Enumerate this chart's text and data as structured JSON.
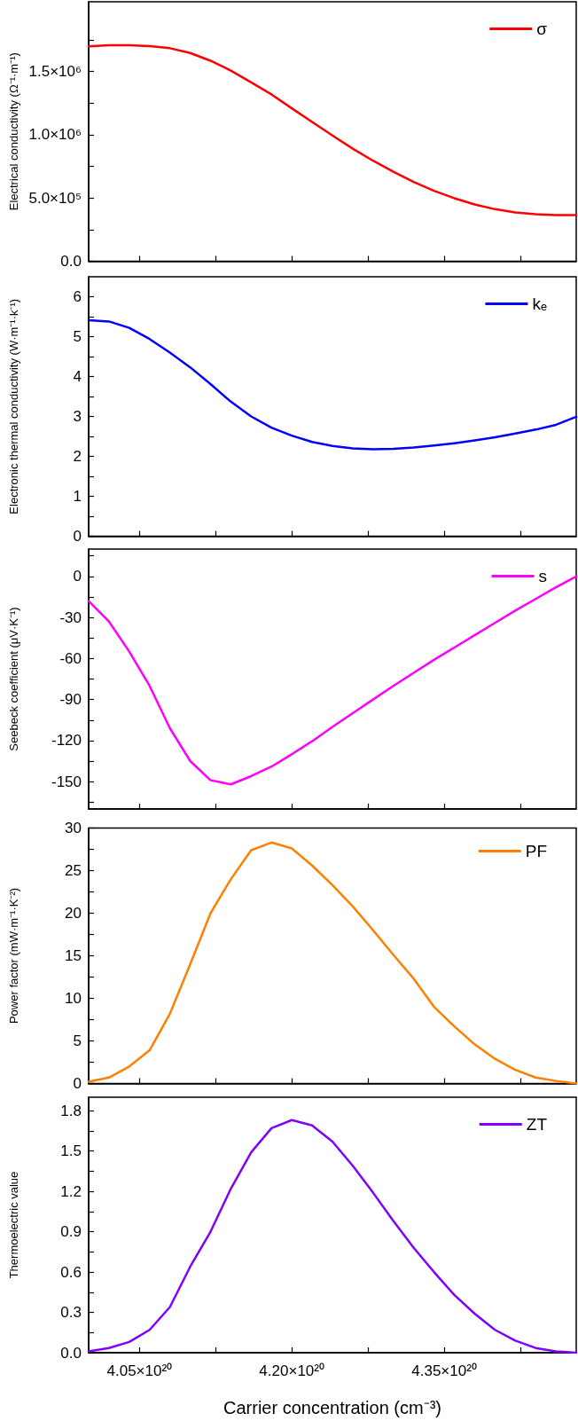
{
  "chart_data": [
    {
      "type": "line",
      "ylabel": "Electrical conductivity (Ω⁻¹·m⁻¹)",
      "legend": "top right",
      "marker": "none",
      "line_style": "solid",
      "grid": false,
      "tick_labels": "y",
      "xlim": [
        4e+20,
        4.48e+20
      ],
      "xticks": [
        {
          "value": 4.05e+20,
          "label": null
        },
        {
          "value": 4.125e+20,
          "label": null
        },
        {
          "value": 4.2e+20,
          "label": null
        },
        {
          "value": 4.275e+20,
          "label": null
        },
        {
          "value": 4.35e+20,
          "label": null
        },
        {
          "value": 4.425e+20,
          "label": null
        }
      ],
      "ylim": [
        0,
        2050000.0
      ],
      "yticks": [
        {
          "value": 0,
          "label": "0.0"
        },
        {
          "value": 250000,
          "label": null
        },
        {
          "value": 500000,
          "label": "5.0×10⁵"
        },
        {
          "value": 750000,
          "label": null
        },
        {
          "value": 1000000,
          "label": "1.0×10⁶"
        },
        {
          "value": 1250000,
          "label": null
        },
        {
          "value": 1500000,
          "label": "1.5×10⁶"
        },
        {
          "value": 1750000,
          "label": null
        }
      ],
      "x": [
        4e+20,
        4.02e+20,
        4.04e+20,
        4.06e+20,
        4.08e+20,
        4.1e+20,
        4.12e+20,
        4.14e+20,
        4.16e+20,
        4.18e+20,
        4.2e+20,
        4.22e+20,
        4.24e+20,
        4.26e+20,
        4.28e+20,
        4.3e+20,
        4.32e+20,
        4.34e+20,
        4.36e+20,
        4.38e+20,
        4.4e+20,
        4.42e+20,
        4.44e+20,
        4.46e+20,
        4.48e+20
      ],
      "series": [
        {
          "name": "σ",
          "color": "#ff0000",
          "values": [
            1697000,
            1706000,
            1706000,
            1700000,
            1683000,
            1645000,
            1584000,
            1506000,
            1413000,
            1318000,
            1208000,
            1100000,
            993000,
            889000,
            794000,
            707000,
            626000,
            556000,
            498000,
            449000,
            411000,
            385000,
            371000,
            365000,
            365000
          ]
        }
      ]
    },
    {
      "type": "line",
      "ylabel": "Electronic thermal conductivity (W·m⁻¹·k⁻¹)",
      "legend": "top right",
      "marker": "none",
      "line_style": "solid",
      "grid": false,
      "tick_labels": "y",
      "xlim": [
        4e+20,
        4.48e+20
      ],
      "xticks": [
        {
          "value": 4.05e+20,
          "label": null
        },
        {
          "value": 4.125e+20,
          "label": null
        },
        {
          "value": 4.2e+20,
          "label": null
        },
        {
          "value": 4.275e+20,
          "label": null
        },
        {
          "value": 4.35e+20,
          "label": null
        },
        {
          "value": 4.425e+20,
          "label": null
        }
      ],
      "ylim": [
        0,
        6.5
      ],
      "yticks": [
        0,
        {
          "value": 0.5,
          "label": null
        },
        1,
        {
          "value": 1.5,
          "label": null
        },
        2,
        {
          "value": 2.5,
          "label": null
        },
        3,
        {
          "value": 3.5,
          "label": null
        },
        4,
        {
          "value": 4.5,
          "label": null
        },
        5,
        {
          "value": 5.5,
          "label": null
        },
        6
      ],
      "x": [
        4e+20,
        4.02e+20,
        4.04e+20,
        4.06e+20,
        4.08e+20,
        4.1e+20,
        4.12e+20,
        4.14e+20,
        4.16e+20,
        4.18e+20,
        4.2e+20,
        4.22e+20,
        4.24e+20,
        4.26e+20,
        4.28e+20,
        4.3e+20,
        4.32e+20,
        4.34e+20,
        4.36e+20,
        4.38e+20,
        4.4e+20,
        4.42e+20,
        4.44e+20,
        4.46e+20,
        4.48e+20
      ],
      "series": [
        {
          "name": "kₑ",
          "color": "#0000ff",
          "values": [
            5.41,
            5.38,
            5.22,
            4.94,
            4.6,
            4.23,
            3.81,
            3.37,
            3.0,
            2.72,
            2.52,
            2.36,
            2.26,
            2.2,
            2.18,
            2.19,
            2.22,
            2.27,
            2.33,
            2.4,
            2.48,
            2.57,
            2.67,
            2.79,
            2.99
          ]
        }
      ]
    },
    {
      "type": "line",
      "ylabel": "Seebeck coefficient (μV·K⁻¹)",
      "legend": "top right",
      "marker": "none",
      "line_style": "solid",
      "grid": false,
      "tick_labels": "y",
      "xlim": [
        4e+20,
        4.48e+20
      ],
      "xticks": [
        {
          "value": 4.05e+20,
          "label": null
        },
        {
          "value": 4.125e+20,
          "label": null
        },
        {
          "value": 4.2e+20,
          "label": null
        },
        {
          "value": 4.275e+20,
          "label": null
        },
        {
          "value": 4.35e+20,
          "label": null
        },
        {
          "value": 4.425e+20,
          "label": null
        }
      ],
      "ylim": [
        -170,
        20
      ],
      "yticks": [
        {
          "value": -165,
          "label": null
        },
        -150,
        {
          "value": -135,
          "label": null
        },
        -120,
        {
          "value": -105,
          "label": null
        },
        -90,
        {
          "value": -75,
          "label": null
        },
        -60,
        {
          "value": -45,
          "label": null
        },
        -30,
        {
          "value": -15,
          "label": null
        },
        0,
        {
          "value": 15,
          "label": null
        }
      ],
      "x": [
        4e+20,
        4.02e+20,
        4.04e+20,
        4.06e+20,
        4.08e+20,
        4.1e+20,
        4.12e+20,
        4.14e+20,
        4.16e+20,
        4.18e+20,
        4.2e+20,
        4.22e+20,
        4.24e+20,
        4.26e+20,
        4.28e+20,
        4.3e+20,
        4.32e+20,
        4.34e+20,
        4.36e+20,
        4.38e+20,
        4.4e+20,
        4.42e+20,
        4.44e+20,
        4.46e+20,
        4.48e+20
      ],
      "series": [
        {
          "name": "s",
          "color": "#ff00ff",
          "values": [
            -18,
            -33,
            -55,
            -80,
            -111,
            -135,
            -149,
            -152,
            -146,
            -139,
            -130,
            -120.5,
            -110,
            -100,
            -90,
            -80,
            -70.5,
            -61,
            -52,
            -43,
            -34,
            -25,
            -16.5,
            -8,
            0
          ]
        }
      ]
    },
    {
      "type": "line",
      "ylabel": "Power factor (mW·m⁻¹·K⁻²)",
      "legend": "top right",
      "marker": "none",
      "line_style": "solid",
      "grid": false,
      "tick_labels": "y",
      "xlim": [
        4e+20,
        4.48e+20
      ],
      "xticks": [
        {
          "value": 4.05e+20,
          "label": null
        },
        {
          "value": 4.125e+20,
          "label": null
        },
        {
          "value": 4.2e+20,
          "label": null
        },
        {
          "value": 4.275e+20,
          "label": null
        },
        {
          "value": 4.35e+20,
          "label": null
        },
        {
          "value": 4.425e+20,
          "label": null
        }
      ],
      "ylim": [
        0,
        30
      ],
      "yticks": [
        0,
        {
          "value": 2.5,
          "label": null
        },
        5,
        {
          "value": 7.5,
          "label": null
        },
        10,
        {
          "value": 12.5,
          "label": null
        },
        15,
        {
          "value": 17.5,
          "label": null
        },
        20,
        {
          "value": 22.5,
          "label": null
        },
        25,
        {
          "value": 27.5,
          "label": null
        },
        30
      ],
      "x": [
        4e+20,
        4.02e+20,
        4.04e+20,
        4.06e+20,
        4.08e+20,
        4.1e+20,
        4.12e+20,
        4.14e+20,
        4.16e+20,
        4.18e+20,
        4.2e+20,
        4.22e+20,
        4.24e+20,
        4.26e+20,
        4.28e+20,
        4.3e+20,
        4.32e+20,
        4.34e+20,
        4.36e+20,
        4.38e+20,
        4.4e+20,
        4.42e+20,
        4.44e+20,
        4.46e+20,
        4.48e+20
      ],
      "series": [
        {
          "name": "PF",
          "color": "#ff8000",
          "values": [
            0.2,
            0.7,
            2.0,
            3.9,
            8.2,
            14.0,
            20.0,
            24.0,
            27.4,
            28.3,
            27.6,
            25.6,
            23.3,
            20.8,
            18.0,
            15.1,
            12.3,
            9.0,
            6.7,
            4.6,
            2.9,
            1.6,
            0.7,
            0.3,
            0
          ]
        }
      ]
    },
    {
      "type": "line",
      "ylabel": "Thermoelectric value",
      "xlabel": "Carrier concentration (cm⁻³)",
      "legend": "top right",
      "marker": "none",
      "line_style": "solid",
      "grid": false,
      "xlim": [
        4e+20,
        4.48e+20
      ],
      "xticks": [
        {
          "value": 4.05e+20,
          "label": "4.05×10²⁰"
        },
        {
          "value": 4.125e+20,
          "label": null
        },
        {
          "value": 4.2e+20,
          "label": "4.20×10²⁰"
        },
        {
          "value": 4.275e+20,
          "label": null
        },
        {
          "value": 4.35e+20,
          "label": "4.35×10²⁰"
        },
        {
          "value": 4.425e+20,
          "label": null
        }
      ],
      "ylim": [
        0,
        1.9
      ],
      "yticks": [
        {
          "value": 0,
          "label": "0.0"
        },
        {
          "value": 0.15,
          "label": null
        },
        {
          "value": 0.3,
          "label": "0.3"
        },
        {
          "value": 0.45,
          "label": null
        },
        {
          "value": 0.6,
          "label": "0.6"
        },
        {
          "value": 0.75,
          "label": null
        },
        {
          "value": 0.9,
          "label": "0.9"
        },
        {
          "value": 1.05,
          "label": null
        },
        {
          "value": 1.2,
          "label": "1.2"
        },
        {
          "value": 1.35,
          "label": null
        },
        {
          "value": 1.5,
          "label": "1.5"
        },
        {
          "value": 1.65,
          "label": null
        },
        {
          "value": 1.8,
          "label": "1.8"
        }
      ],
      "x": [
        4e+20,
        4.02e+20,
        4.04e+20,
        4.06e+20,
        4.08e+20,
        4.1e+20,
        4.12e+20,
        4.14e+20,
        4.16e+20,
        4.18e+20,
        4.2e+20,
        4.22e+20,
        4.24e+20,
        4.26e+20,
        4.28e+20,
        4.3e+20,
        4.32e+20,
        4.34e+20,
        4.36e+20,
        4.38e+20,
        4.4e+20,
        4.42e+20,
        4.44e+20,
        4.46e+20,
        4.48e+20
      ],
      "series": [
        {
          "name": "ZT",
          "color": "#8000ff",
          "values": [
            0.01,
            0.035,
            0.08,
            0.17,
            0.34,
            0.64,
            0.9,
            1.22,
            1.49,
            1.67,
            1.73,
            1.69,
            1.57,
            1.39,
            1.19,
            0.98,
            0.78,
            0.6,
            0.43,
            0.29,
            0.17,
            0.09,
            0.035,
            0.01,
            0
          ]
        }
      ]
    }
  ]
}
